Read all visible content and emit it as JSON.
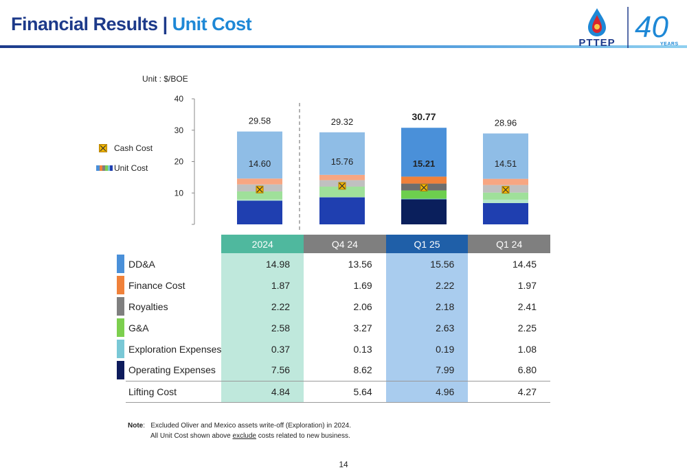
{
  "header": {
    "title_part1": "Financial Results | ",
    "title_part2": "Unit Cost"
  },
  "logo": {
    "company": "PTTEP",
    "anniversary": "40",
    "anniversary_label": "YEARS"
  },
  "chart_data": {
    "type": "bar",
    "stacked": true,
    "unit_label": "Unit : $/BOE",
    "ylim": [
      0,
      40
    ],
    "yticks": [
      10,
      20,
      30,
      40
    ],
    "categories": [
      "2024",
      "Q4 24",
      "Q1 25",
      "Q1 24"
    ],
    "totals": [
      29.58,
      29.32,
      30.77,
      28.96
    ],
    "cash_cost": [
      14.6,
      15.76,
      15.21,
      14.51
    ],
    "series": [
      {
        "name": "Operating Expenses",
        "values": [
          7.56,
          8.62,
          7.99,
          6.8
        ],
        "color": "#1f3fb0",
        "highlight_color": "#0a1f5c"
      },
      {
        "name": "Exploration Expenses",
        "values": [
          0.37,
          0.13,
          0.19,
          1.08
        ],
        "color": "#b5e8c8",
        "highlight_color": "#79c8d6"
      },
      {
        "name": "G&A",
        "values": [
          2.58,
          3.27,
          2.63,
          2.25
        ],
        "color": "#9fe09a",
        "highlight_color": "#6dcf4e"
      },
      {
        "name": "Royalties",
        "values": [
          2.22,
          2.06,
          2.18,
          2.41
        ],
        "color": "#c0c0c0",
        "highlight_color": "#6e6e6e"
      },
      {
        "name": "Finance Cost",
        "values": [
          1.87,
          1.69,
          2.22,
          1.97
        ],
        "color": "#f7a682",
        "highlight_color": "#f0813a"
      },
      {
        "name": "DD&A",
        "values": [
          14.98,
          13.56,
          15.56,
          14.45
        ],
        "color": "#8fbde6",
        "highlight_color": "#4a90d9"
      }
    ],
    "highlight_category": "Q1 25",
    "legend": [
      {
        "label": "Cash Cost",
        "marker": "x-in-box"
      },
      {
        "label": "Unit Cost",
        "marker": "multicolor-bar"
      }
    ],
    "divider_after_category": "2024"
  },
  "table": {
    "columns": [
      "2024",
      "Q4 24",
      "Q1 25",
      "Q1 24"
    ],
    "column_colors": [
      "#4fb89e",
      "#7f7f7f",
      "#1f5fa8",
      "#7f7f7f"
    ],
    "column_fill": [
      "#bfe8dc",
      "#ffffff",
      "#a9ccee",
      "#ffffff"
    ],
    "rows": [
      {
        "label": "DD&A",
        "color": "#4a90d9",
        "values": [
          "14.98",
          "13.56",
          "15.56",
          "14.45"
        ]
      },
      {
        "label": "Finance Cost",
        "color": "#f0813a",
        "values": [
          "1.87",
          "1.69",
          "2.22",
          "1.97"
        ]
      },
      {
        "label": "Royalties",
        "color": "#7f7f7f",
        "values": [
          "2.22",
          "2.06",
          "2.18",
          "2.41"
        ]
      },
      {
        "label": "G&A",
        "color": "#7ccf4e",
        "values": [
          "2.58",
          "3.27",
          "2.63",
          "2.25"
        ]
      },
      {
        "label": "Exploration Expenses",
        "color": "#79c8d6",
        "values": [
          "0.37",
          "0.13",
          "0.19",
          "1.08"
        ]
      },
      {
        "label": "Operating Expenses",
        "color": "#0d1b5c",
        "values": [
          "7.56",
          "8.62",
          "7.99",
          "6.80"
        ]
      },
      {
        "label": "Lifting Cost",
        "color": "",
        "values": [
          "4.84",
          "5.64",
          "4.96",
          "4.27"
        ]
      }
    ]
  },
  "note": {
    "prefix": "Note",
    "line1": "Excluded Oliver and Mexico assets write-off (Exploration) in 2024.",
    "line2_before": "All Unit Cost shown above ",
    "line2_underlined": "exclude",
    "line2_after": " costs related to new business."
  },
  "page_number": "14"
}
